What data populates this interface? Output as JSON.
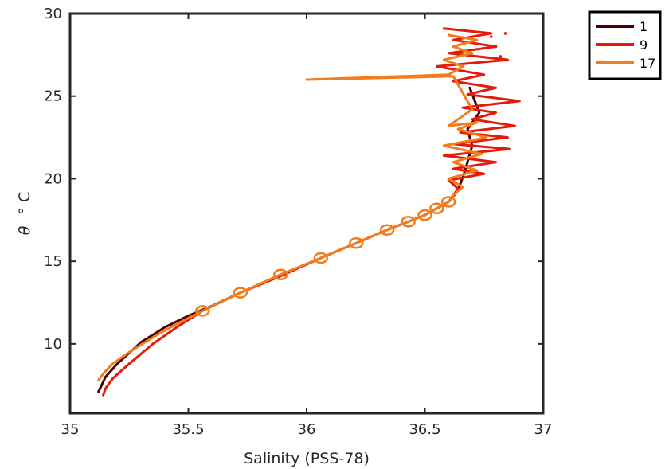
{
  "chart_data": {
    "type": "line",
    "xlabel": "Salinity (PSS-78)",
    "ylabel_symbol": "θ",
    "ylabel_unit": "° C",
    "xlim": [
      35,
      37
    ],
    "ylim": [
      5.8,
      30
    ],
    "xticks": [
      35,
      35.5,
      36,
      36.5,
      37
    ],
    "xtick_labels": [
      "35",
      "35.5",
      "36",
      "36.5",
      "37"
    ],
    "yticks": [
      10,
      15,
      20,
      25,
      30
    ],
    "ytick_labels": [
      "10",
      "15",
      "20",
      "25",
      "30"
    ],
    "grid": false,
    "legend_position": "outside-top-right",
    "series": [
      {
        "name": "1",
        "color": "#4a0000",
        "x": [
          35.12,
          35.13,
          35.15,
          35.2,
          35.3,
          35.4,
          35.5,
          35.6,
          35.72,
          35.9,
          36.06,
          36.21,
          36.34,
          36.43,
          36.5,
          36.55,
          36.6,
          36.64,
          36.67,
          36.7,
          36.68,
          36.73,
          36.69
        ],
        "y": [
          7.1,
          7.4,
          8.0,
          8.8,
          10.1,
          11.0,
          11.7,
          12.3,
          13.1,
          14.2,
          15.2,
          16.1,
          16.9,
          17.4,
          17.8,
          18.2,
          18.6,
          19.3,
          20.5,
          22.0,
          23.0,
          24.0,
          25.5
        ]
      },
      {
        "name": "9",
        "color": "#e41a0a",
        "x": [
          35.14,
          35.15,
          35.18,
          35.25,
          35.35,
          35.45,
          35.56,
          35.72,
          35.89,
          36.06,
          36.21,
          36.34,
          36.43,
          36.5,
          36.55,
          36.6,
          36.62,
          36.64,
          36.6,
          36.75,
          36.62,
          36.8,
          36.58,
          36.86,
          36.62,
          36.85,
          36.65,
          36.88,
          36.7,
          36.8,
          36.66,
          36.9,
          36.68,
          36.8,
          36.62,
          36.75,
          36.55,
          36.85,
          36.6,
          36.8,
          36.62,
          36.78,
          36.58
        ],
        "y": [
          6.9,
          7.3,
          7.9,
          8.8,
          10.0,
          11.0,
          12.0,
          13.1,
          14.1,
          15.2,
          16.1,
          16.9,
          17.4,
          17.8,
          18.2,
          18.6,
          19.0,
          19.4,
          19.9,
          20.3,
          20.6,
          21.0,
          21.4,
          21.8,
          22.1,
          22.5,
          22.8,
          23.2,
          23.6,
          24.0,
          24.3,
          24.7,
          25.1,
          25.5,
          25.9,
          26.3,
          26.8,
          27.2,
          27.6,
          28.0,
          28.4,
          28.8,
          29.1
        ]
      },
      {
        "name": "17",
        "color": "#f47c1a",
        "x": [
          35.12,
          35.14,
          35.18,
          35.25,
          35.35,
          35.45,
          35.56,
          35.72,
          35.89,
          36.06,
          36.21,
          36.34,
          36.43,
          36.5,
          36.55,
          36.6,
          36.62,
          36.66,
          36.6,
          36.72,
          36.62,
          36.74,
          36.58,
          36.76,
          36.64,
          36.72,
          36.6,
          36.7,
          36.66,
          36.62,
          36.0,
          36.6,
          36.66,
          36.58,
          36.7,
          36.62,
          36.72,
          36.6
        ],
        "y": [
          7.8,
          8.2,
          8.8,
          9.5,
          10.4,
          11.2,
          12.0,
          13.1,
          14.2,
          15.2,
          16.1,
          16.9,
          17.4,
          17.8,
          18.2,
          18.6,
          19.0,
          19.5,
          20.0,
          20.5,
          21.0,
          21.5,
          22.0,
          22.5,
          23.0,
          23.4,
          23.2,
          24.2,
          25.2,
          26.2,
          26.0,
          26.3,
          26.8,
          27.2,
          27.6,
          28.0,
          28.4,
          28.7
        ]
      }
    ],
    "markers": {
      "symbol": "circle",
      "color": "#f47c1a",
      "x": [
        35.56,
        35.72,
        35.89,
        36.06,
        36.21,
        36.34,
        36.43,
        36.5,
        36.55,
        36.6
      ],
      "y": [
        12.0,
        13.1,
        14.2,
        15.2,
        16.1,
        16.9,
        17.4,
        17.8,
        18.2,
        18.6
      ]
    },
    "scatter_points": {
      "color": "#e41a0a",
      "x": [
        36.78,
        36.8,
        36.82,
        36.84
      ],
      "y": [
        28.6,
        28.0,
        27.4,
        28.8
      ]
    }
  }
}
